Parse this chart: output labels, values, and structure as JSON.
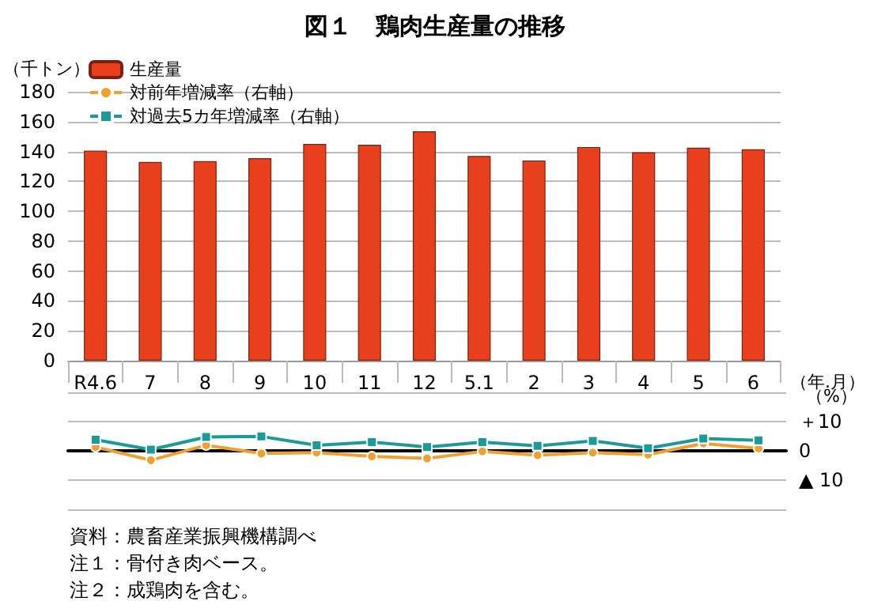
{
  "chart_data": [
    {
      "type": "bar",
      "title": "図１　鶏肉生産量の推移",
      "ylabel": "（千トン）",
      "xlabel": "（年.月）",
      "categories": [
        "R4.6",
        "7",
        "8",
        "9",
        "10",
        "11",
        "12",
        "5.1",
        "2",
        "3",
        "4",
        "5",
        "6"
      ],
      "series": [
        {
          "name": "生産量",
          "color": "#e8401c",
          "values": [
            140.5,
            133,
            133.5,
            135.5,
            145,
            144.5,
            153.5,
            137,
            134,
            143,
            139.5,
            142.5,
            141.5
          ]
        }
      ],
      "ylim": [
        0,
        180
      ],
      "yticks": [
        0,
        20,
        40,
        60,
        80,
        100,
        120,
        140,
        160,
        180
      ],
      "grid": "y",
      "legend": "top left"
    },
    {
      "type": "line",
      "ylabel": "（%）",
      "categories": [
        null,
        null,
        null,
        null,
        null,
        null,
        null,
        null,
        null,
        null,
        null,
        null,
        null
      ],
      "series": [
        {
          "name": "対前年増減率（右軸）",
          "marker": "circle",
          "color": "#f0a030",
          "values": [
            1.3,
            -3.2,
            1.9,
            -0.9,
            -0.6,
            -1.9,
            -2.6,
            -0.2,
            -1.5,
            -0.6,
            -1.3,
            2.5,
            0.8
          ]
        },
        {
          "name": "対過去5カ年増減率（右軸）",
          "marker": "square",
          "color": "#1a9a98",
          "values": [
            3.8,
            0.4,
            4.7,
            4.9,
            1.9,
            3.0,
            1.3,
            3.0,
            1.7,
            3.4,
            0.9,
            4.2,
            3.6
          ]
        }
      ],
      "ylim": [
        -20,
        20
      ],
      "yticks": [
        {
          "value": -20,
          "label": null
        },
        {
          "value": -10,
          "label": "▲ 10"
        },
        0,
        {
          "value": 10,
          "label": "＋10"
        },
        {
          "value": 20,
          "label": null
        }
      ],
      "grid": "y",
      "legend": "top left",
      "annotations": [
        "資料：農畜産業振興機構調べ",
        "注１：骨付き肉ベース。",
        "注２：成鶏肉を含む。"
      ]
    }
  ]
}
